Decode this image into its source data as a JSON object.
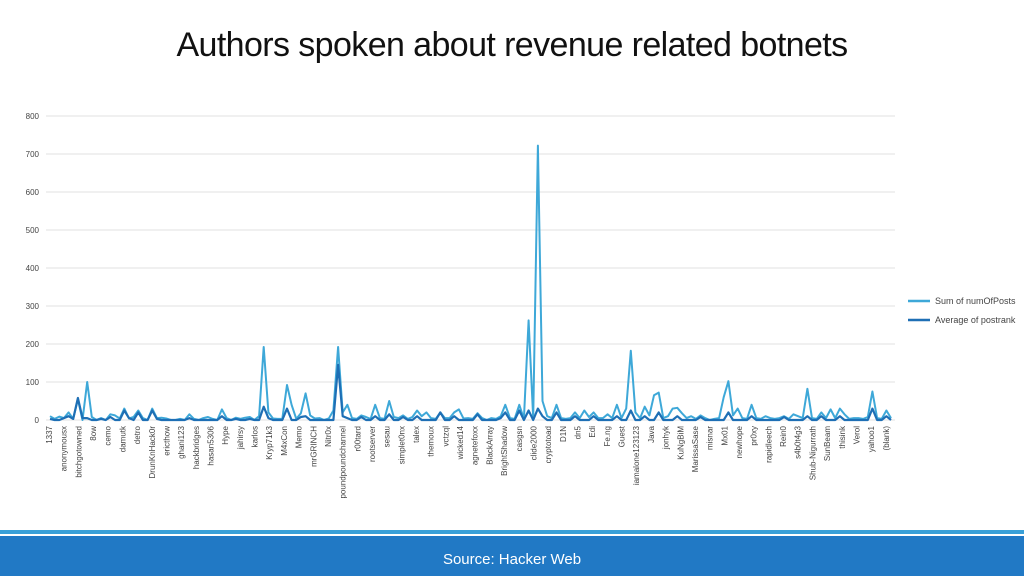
{
  "title": "Authors spoken about revenue related botnets",
  "footer": "Source: Hacker Web",
  "chart_data": {
    "type": "line",
    "ylim": [
      0,
      800
    ],
    "yticks": [
      0,
      100,
      200,
      300,
      400,
      500,
      600,
      700,
      800
    ],
    "grid": true,
    "legend_position": "right",
    "categories": [
      "1337",
      "anonymousx",
      "bitchgotowned",
      "8ow",
      "cemo",
      "damutk",
      "detro",
      "DrunKnHack0r",
      "ericthow",
      "ghani123",
      "hackbridges",
      "hasan5306",
      "Hype",
      "jahirsy",
      "karlos",
      "Kryp71k3",
      "M4xCon",
      "Memo",
      "mrGRINCH",
      "Nitr0x",
      "poundpoundchannel",
      "r00tard",
      "rootserver",
      "sesau",
      "simplet0nx",
      "talex",
      "themoux",
      "vctzql",
      "wicked14",
      "agnetefoxx",
      "BlackArray",
      "BrightShadow",
      "casgsn",
      "clide2000",
      "cryptotoad",
      "D1N",
      "dn5",
      "Edi",
      "Fe.ng",
      "Guest",
      "iamalone123123",
      "Java",
      "jonhyk",
      "KuNgBiM",
      "MarissaSase",
      "misnar",
      "Mx01",
      "newhope",
      "pr0xy",
      "rapidleech",
      "Rein0",
      "s4b0t4g3",
      "Shub-Nigurrath",
      "SunBeam",
      "thisink",
      "Verol",
      "yahoo1",
      "(blank)"
    ],
    "n_points": 182,
    "series": [
      {
        "name": "Sum of numOfPosts",
        "color": "#3ea8d8",
        "spikes": [
          [
            0,
            10
          ],
          [
            1,
            3
          ],
          [
            2,
            9
          ],
          [
            3,
            5
          ],
          [
            4,
            20
          ],
          [
            5,
            3
          ],
          [
            6,
            55
          ],
          [
            8,
            100
          ],
          [
            9,
            8
          ],
          [
            11,
            5
          ],
          [
            13,
            15
          ],
          [
            14,
            12
          ],
          [
            15,
            4
          ],
          [
            16,
            30
          ],
          [
            17,
            4
          ],
          [
            18,
            8
          ],
          [
            19,
            25
          ],
          [
            20,
            5
          ],
          [
            22,
            30
          ],
          [
            23,
            5
          ],
          [
            24,
            6
          ],
          [
            25,
            4
          ],
          [
            28,
            3
          ],
          [
            30,
            15
          ],
          [
            31,
            3
          ],
          [
            33,
            5
          ],
          [
            34,
            8
          ],
          [
            35,
            3
          ],
          [
            37,
            28
          ],
          [
            38,
            5
          ],
          [
            40,
            6
          ],
          [
            41,
            3
          ],
          [
            42,
            6
          ],
          [
            43,
            8
          ],
          [
            45,
            10
          ],
          [
            46,
            192
          ],
          [
            47,
            20
          ],
          [
            48,
            4
          ],
          [
            49,
            3
          ],
          [
            50,
            3
          ],
          [
            51,
            92
          ],
          [
            52,
            40
          ],
          [
            53,
            3
          ],
          [
            54,
            18
          ],
          [
            55,
            70
          ],
          [
            56,
            12
          ],
          [
            57,
            4
          ],
          [
            58,
            5
          ],
          [
            60,
            4
          ],
          [
            61,
            25
          ],
          [
            62,
            192
          ],
          [
            63,
            20
          ],
          [
            64,
            40
          ],
          [
            65,
            5
          ],
          [
            66,
            3
          ],
          [
            67,
            12
          ],
          [
            68,
            8
          ],
          [
            69,
            3
          ],
          [
            70,
            40
          ],
          [
            71,
            5
          ],
          [
            72,
            3
          ],
          [
            73,
            50
          ],
          [
            74,
            8
          ],
          [
            75,
            5
          ],
          [
            76,
            12
          ],
          [
            77,
            3
          ],
          [
            78,
            8
          ],
          [
            79,
            25
          ],
          [
            80,
            10
          ],
          [
            81,
            20
          ],
          [
            82,
            5
          ],
          [
            83,
            3
          ],
          [
            84,
            20
          ],
          [
            85,
            5
          ],
          [
            86,
            5
          ],
          [
            87,
            20
          ],
          [
            88,
            28
          ],
          [
            89,
            4
          ],
          [
            90,
            5
          ],
          [
            91,
            3
          ],
          [
            92,
            18
          ],
          [
            93,
            5
          ],
          [
            95,
            5
          ],
          [
            96,
            3
          ],
          [
            97,
            10
          ],
          [
            98,
            40
          ],
          [
            99,
            5
          ],
          [
            100,
            3
          ],
          [
            101,
            40
          ],
          [
            102,
            3
          ],
          [
            103,
            262
          ],
          [
            104,
            5
          ],
          [
            105,
            722
          ],
          [
            106,
            50
          ],
          [
            107,
            10
          ],
          [
            108,
            5
          ],
          [
            109,
            40
          ],
          [
            110,
            5
          ],
          [
            111,
            3
          ],
          [
            112,
            5
          ],
          [
            113,
            20
          ],
          [
            114,
            5
          ],
          [
            115,
            25
          ],
          [
            116,
            8
          ],
          [
            117,
            20
          ],
          [
            118,
            5
          ],
          [
            119,
            5
          ],
          [
            120,
            15
          ],
          [
            121,
            5
          ],
          [
            122,
            40
          ],
          [
            123,
            5
          ],
          [
            124,
            30
          ],
          [
            125,
            182
          ],
          [
            126,
            20
          ],
          [
            127,
            5
          ],
          [
            128,
            35
          ],
          [
            129,
            12
          ],
          [
            130,
            65
          ],
          [
            131,
            72
          ],
          [
            132,
            5
          ],
          [
            133,
            10
          ],
          [
            134,
            30
          ],
          [
            135,
            32
          ],
          [
            136,
            18
          ],
          [
            137,
            5
          ],
          [
            138,
            10
          ],
          [
            139,
            3
          ],
          [
            140,
            12
          ],
          [
            141,
            5
          ],
          [
            143,
            3
          ],
          [
            144,
            5
          ],
          [
            145,
            60
          ],
          [
            146,
            102
          ],
          [
            147,
            12
          ],
          [
            148,
            30
          ],
          [
            149,
            5
          ],
          [
            150,
            3
          ],
          [
            151,
            40
          ],
          [
            152,
            5
          ],
          [
            153,
            3
          ],
          [
            154,
            10
          ],
          [
            155,
            5
          ],
          [
            156,
            3
          ],
          [
            157,
            5
          ],
          [
            158,
            10
          ],
          [
            159,
            3
          ],
          [
            160,
            15
          ],
          [
            161,
            10
          ],
          [
            162,
            5
          ],
          [
            163,
            82
          ],
          [
            164,
            5
          ],
          [
            165,
            3
          ],
          [
            166,
            20
          ],
          [
            167,
            5
          ],
          [
            168,
            28
          ],
          [
            169,
            5
          ],
          [
            170,
            30
          ],
          [
            171,
            15
          ],
          [
            172,
            3
          ],
          [
            173,
            5
          ],
          [
            174,
            5
          ],
          [
            175,
            3
          ],
          [
            176,
            8
          ],
          [
            177,
            75
          ],
          [
            178,
            5
          ],
          [
            179,
            3
          ],
          [
            180,
            25
          ],
          [
            181,
            5
          ]
        ]
      },
      {
        "name": "Average of postrank",
        "color": "#1e6fb5",
        "spikes": [
          [
            0,
            3
          ],
          [
            3,
            5
          ],
          [
            4,
            10
          ],
          [
            5,
            3
          ],
          [
            6,
            58
          ],
          [
            7,
            5
          ],
          [
            8,
            5
          ],
          [
            11,
            3
          ],
          [
            13,
            8
          ],
          [
            16,
            25
          ],
          [
            17,
            5
          ],
          [
            19,
            20
          ],
          [
            22,
            25
          ],
          [
            23,
            3
          ],
          [
            30,
            5
          ],
          [
            37,
            10
          ],
          [
            40,
            3
          ],
          [
            43,
            3
          ],
          [
            46,
            35
          ],
          [
            47,
            5
          ],
          [
            51,
            30
          ],
          [
            54,
            8
          ],
          [
            55,
            10
          ],
          [
            62,
            145
          ],
          [
            63,
            10
          ],
          [
            64,
            5
          ],
          [
            67,
            8
          ],
          [
            70,
            10
          ],
          [
            73,
            15
          ],
          [
            76,
            8
          ],
          [
            79,
            10
          ],
          [
            84,
            20
          ],
          [
            87,
            10
          ],
          [
            92,
            15
          ],
          [
            97,
            5
          ],
          [
            98,
            20
          ],
          [
            101,
            25
          ],
          [
            103,
            25
          ],
          [
            105,
            30
          ],
          [
            106,
            10
          ],
          [
            109,
            20
          ],
          [
            113,
            10
          ],
          [
            117,
            10
          ],
          [
            122,
            10
          ],
          [
            125,
            25
          ],
          [
            128,
            10
          ],
          [
            131,
            20
          ],
          [
            135,
            10
          ],
          [
            140,
            8
          ],
          [
            146,
            20
          ],
          [
            151,
            10
          ],
          [
            158,
            8
          ],
          [
            163,
            10
          ],
          [
            166,
            10
          ],
          [
            170,
            10
          ],
          [
            177,
            30
          ],
          [
            180,
            10
          ]
        ]
      }
    ]
  }
}
